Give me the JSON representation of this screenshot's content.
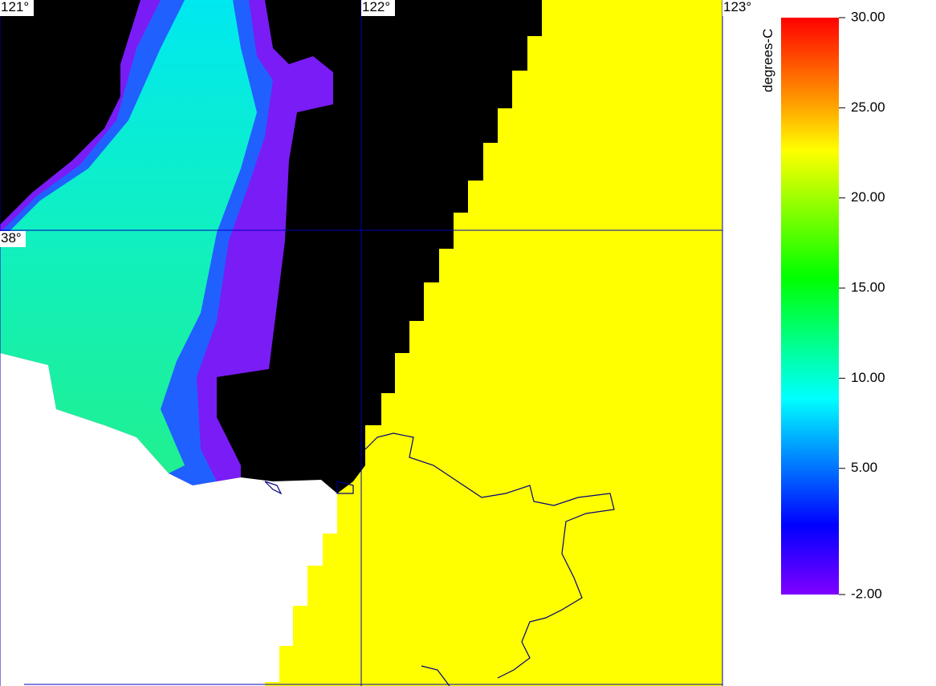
{
  "map": {
    "graticule": {
      "lon_labels": [
        "121°",
        "122°",
        "123°"
      ],
      "lat_labels": [
        "38°"
      ]
    },
    "colorbar": {
      "label": "degrees-C",
      "lim": [
        -2,
        30
      ],
      "ticks": [
        {
          "value": 30,
          "label": "30.00"
        },
        {
          "value": 25,
          "label": "25.00"
        },
        {
          "value": 20,
          "label": "20.00"
        },
        {
          "value": 15,
          "label": "15.00"
        },
        {
          "value": 10,
          "label": "10.00"
        },
        {
          "value": 5,
          "label": "5.00"
        },
        {
          "value": -2,
          "label": "-2.00"
        }
      ]
    }
  }
}
